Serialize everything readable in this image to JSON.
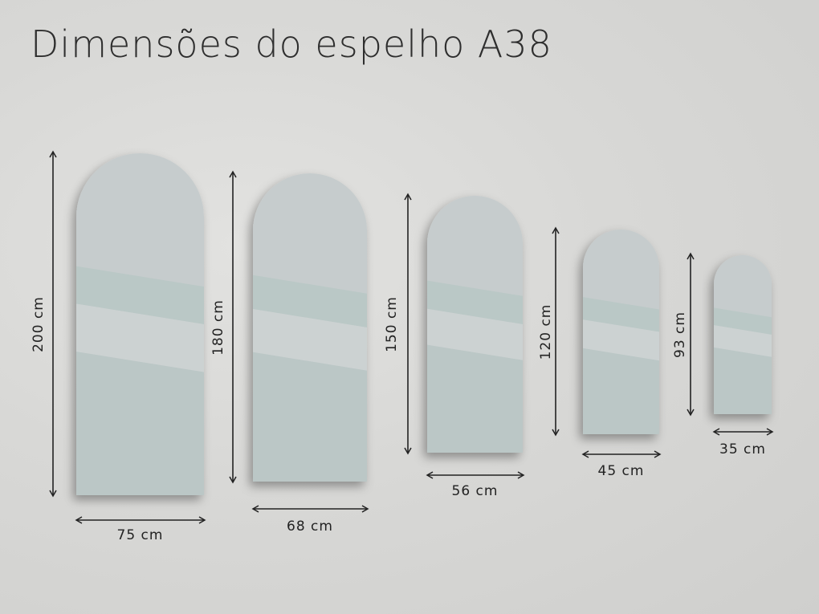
{
  "title": "Dimensões do espelho A38",
  "colors": {
    "mirror_top": "#c6cccd",
    "mirror_band": "#bac8c6",
    "mirror_light": "#ccd2d2",
    "mirror_bottom": "#bbc7c6",
    "arrow": "#222222"
  },
  "mirrors": [
    {
      "height_label": "200 cm",
      "width_label": "75 cm"
    },
    {
      "height_label": "180 cm",
      "width_label": "68 cm"
    },
    {
      "height_label": "150 cm",
      "width_label": "56 cm"
    },
    {
      "height_label": "120 cm",
      "width_label": "45 cm"
    },
    {
      "height_label": "93 cm",
      "width_label": "35 cm"
    }
  ]
}
